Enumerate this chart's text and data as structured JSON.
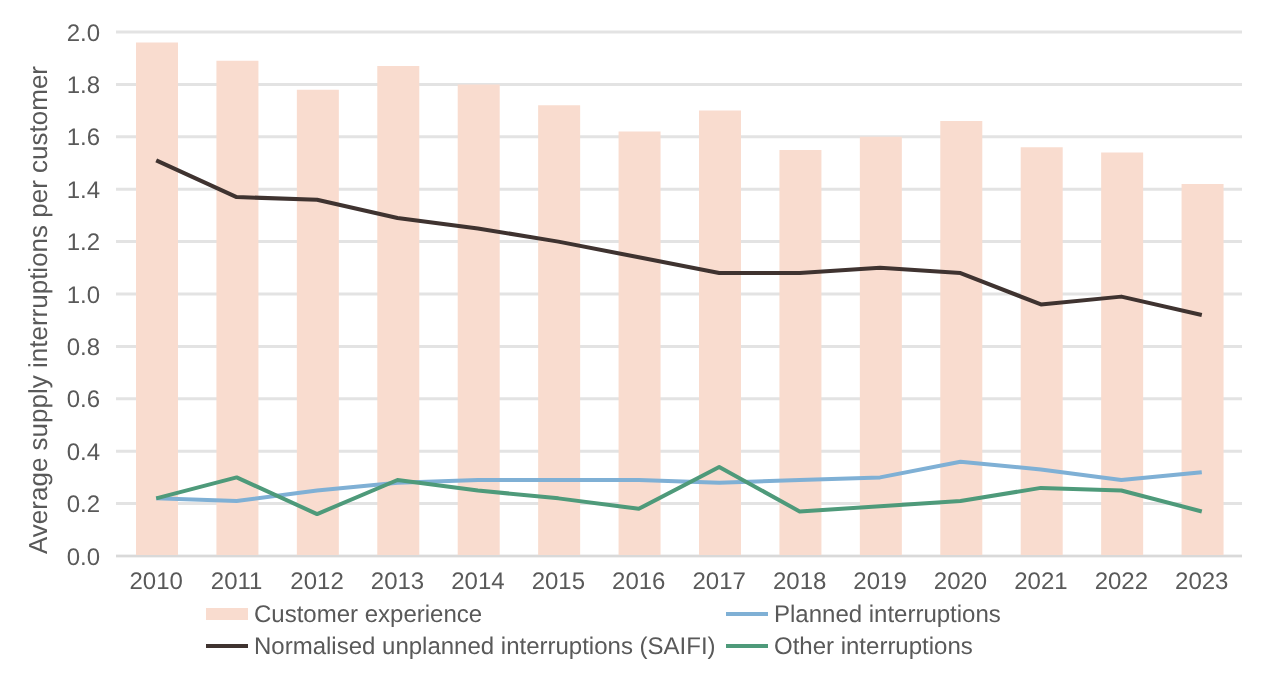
{
  "chart_data": {
    "type": "bar",
    "ylabel": "Average supply interruptions per customer",
    "categories": [
      "2010",
      "2011",
      "2012",
      "2013",
      "2014",
      "2015",
      "2016",
      "2017",
      "2018",
      "2019",
      "2020",
      "2021",
      "2022",
      "2023"
    ],
    "series": [
      {
        "name": "Customer experience",
        "color": "#f9dccf",
        "values": [
          1.96,
          1.89,
          1.78,
          1.87,
          1.8,
          1.72,
          1.62,
          1.7,
          1.55,
          1.6,
          1.66,
          1.56,
          1.54,
          1.42
        ]
      },
      {
        "name": "Planned interruptions",
        "type": "line",
        "color": "#7fb0d5",
        "values": [
          0.22,
          0.21,
          0.25,
          0.28,
          0.29,
          0.29,
          0.29,
          0.28,
          0.29,
          0.3,
          0.36,
          0.33,
          0.29,
          0.32
        ]
      },
      {
        "name": "Normalised unplanned interruptions (SAIFI)",
        "type": "line",
        "color": "#3f3330",
        "values": [
          1.51,
          1.37,
          1.36,
          1.29,
          1.25,
          1.2,
          1.14,
          1.08,
          1.08,
          1.1,
          1.08,
          0.96,
          0.99,
          0.92
        ]
      },
      {
        "name": "Other interruptions",
        "type": "line",
        "color": "#4e9a7a",
        "values": [
          0.22,
          0.3,
          0.16,
          0.29,
          0.25,
          0.22,
          0.18,
          0.34,
          0.17,
          0.19,
          0.21,
          0.26,
          0.25,
          0.17
        ]
      }
    ],
    "ylim": [
      0,
      2.0
    ],
    "yticks": [
      {
        "value": 0,
        "label": "0.0"
      },
      {
        "value": 0.2,
        "label": "0.2"
      },
      {
        "value": 0.4,
        "label": "0.4"
      },
      {
        "value": 0.6,
        "label": "0.6"
      },
      {
        "value": 0.8,
        "label": "0.8"
      },
      {
        "value": 1,
        "label": "1.0"
      },
      {
        "value": 1.2,
        "label": "1.2"
      },
      {
        "value": 1.4,
        "label": "1.4"
      },
      {
        "value": 1.6,
        "label": "1.6"
      },
      {
        "value": 1.8,
        "label": "1.8"
      },
      {
        "value": 2,
        "label": "2.0"
      }
    ],
    "grid": "y",
    "legend": "bottom",
    "marker": "none",
    "line_style": "solid"
  }
}
